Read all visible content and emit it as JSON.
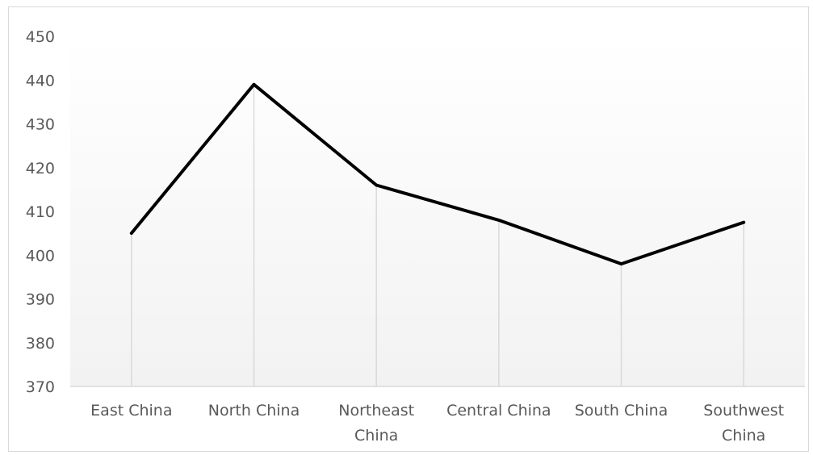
{
  "chart_data": {
    "type": "line",
    "title": "",
    "xlabel": "",
    "ylabel": "",
    "categories": [
      [
        "East China"
      ],
      [
        "North China"
      ],
      [
        "Northeast",
        "China"
      ],
      [
        "Central China"
      ],
      [
        "South China"
      ],
      [
        "Southwest",
        "China"
      ]
    ],
    "series": [
      {
        "values": [
          405,
          439,
          416,
          408,
          398,
          407.5
        ]
      }
    ],
    "ylim": [
      370,
      450
    ],
    "yticks": [
      "370",
      "380",
      "390",
      "400",
      "410",
      "420",
      "430",
      "440",
      "450"
    ],
    "drop_lines": true,
    "grid": false,
    "legend": "none",
    "colors": {
      "line": "#000000",
      "drop_line": "#d9d9d9",
      "text": "#595959",
      "axis": "#d9d9d9",
      "plot_gradient_top": "#ffffff",
      "plot_gradient_bottom": "#f2f2f2"
    }
  }
}
